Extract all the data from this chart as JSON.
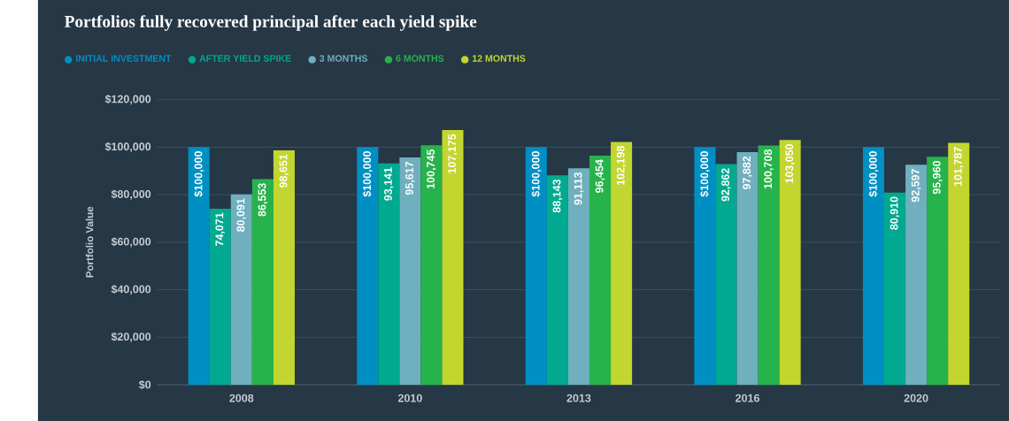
{
  "chart_data": {
    "type": "bar",
    "title": "Portfolios fully recovered principal after each yield spike",
    "ylabel": "Portfolio Value",
    "categories": [
      "2008",
      "2010",
      "2013",
      "2016",
      "2020"
    ],
    "series": [
      {
        "name": "INITIAL INVESTMENT",
        "color": "#008fc2",
        "values": [
          100000,
          100000,
          100000,
          100000,
          100000
        ],
        "value_labels": [
          "$100,000",
          "$100,000",
          "$100,000",
          "$100,000",
          "$100,000"
        ]
      },
      {
        "name": "AFTER YIELD SPIKE",
        "color": "#00a98f",
        "values": [
          74071,
          93141,
          88143,
          92862,
          80910
        ],
        "value_labels": [
          "74,071",
          "93,141",
          "88,143",
          "92,862",
          "80,910"
        ]
      },
      {
        "name": "3 MONTHS",
        "color": "#6fafbe",
        "values": [
          80091,
          95617,
          91113,
          97882,
          92597
        ],
        "value_labels": [
          "80,091",
          "95,617",
          "91,113",
          "97,882",
          "92,597"
        ]
      },
      {
        "name": "6 MONTHS",
        "color": "#27b34b",
        "values": [
          86553,
          100745,
          96454,
          100708,
          95960
        ],
        "value_labels": [
          "86,553",
          "100,745",
          "96,454",
          "100,708",
          "95,960"
        ]
      },
      {
        "name": "12 MONTHS",
        "color": "#c3d62f",
        "values": [
          98651,
          107175,
          102198,
          103050,
          101787
        ],
        "value_labels": [
          "98,651",
          "107,175",
          "102,198",
          "103,050",
          "101,787"
        ]
      }
    ],
    "ylim": [
      0,
      120000
    ],
    "yticks": [
      {
        "value": 0,
        "label": "$0"
      },
      {
        "value": 20000,
        "label": "$20,000"
      },
      {
        "value": 40000,
        "label": "$40,000"
      },
      {
        "value": 60000,
        "label": "$60,000"
      },
      {
        "value": 80000,
        "label": "$80,000"
      },
      {
        "value": 100000,
        "label": "$100,000"
      },
      {
        "value": 120000,
        "label": "$120,000"
      }
    ],
    "grid": "y",
    "legend": "top left"
  }
}
